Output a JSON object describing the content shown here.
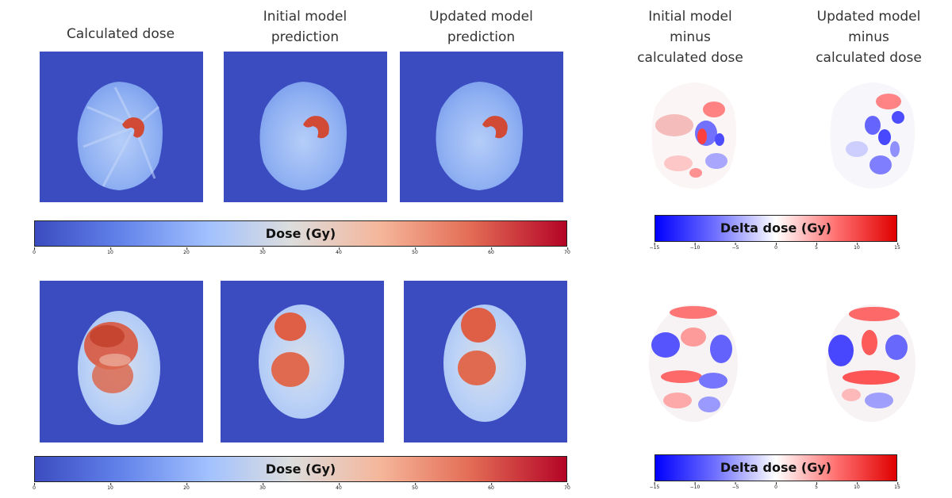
{
  "headers": {
    "calculated": "Calculated dose",
    "initial": "Initial model\nprediction",
    "updated": "Updated model\nprediction",
    "initial_delta": "Initial model\nminus\ncalculated dose",
    "updated_delta": "Updated model\nminus\ncalculated dose"
  },
  "dose_colorbar": {
    "title": "Dose (Gy)",
    "ticks": [
      "0",
      "10",
      "20",
      "30",
      "40",
      "50",
      "60",
      "70"
    ],
    "range": [
      0,
      70
    ],
    "colormap": [
      "#3b4cc0",
      "#7396f5",
      "#b0cbfc",
      "#dddddd",
      "#f6bfa6",
      "#e8765c",
      "#b40426"
    ]
  },
  "delta_colorbar": {
    "title": "Delta dose (Gy)",
    "ticks": [
      "−15",
      "−10",
      "−5",
      "0",
      "5",
      "10",
      "15"
    ],
    "range": [
      -15,
      15
    ],
    "colormap": [
      "#0000ff",
      "#8080ff",
      "#ffffff",
      "#ff8080",
      "#e00000"
    ]
  },
  "colors": {
    "background_blue": "#3b4cc0",
    "hot": "#d6503a",
    "warm": "#e8765c",
    "head_light": "#9ebcf5"
  }
}
